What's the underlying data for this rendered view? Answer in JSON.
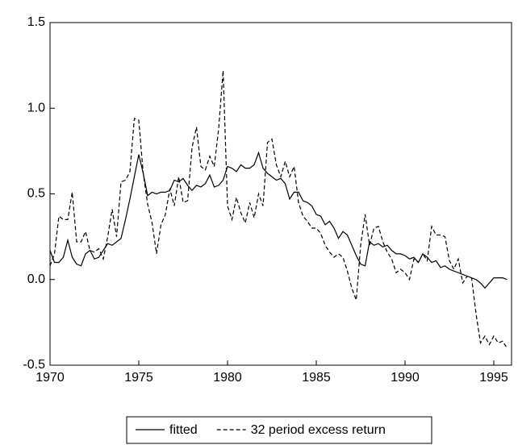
{
  "chart_data": {
    "type": "line",
    "x": [
      1970,
      1970.25,
      1970.5,
      1970.75,
      1971,
      1971.25,
      1971.5,
      1971.75,
      1972,
      1972.25,
      1972.5,
      1972.75,
      1973,
      1973.25,
      1973.5,
      1973.75,
      1974,
      1974.25,
      1974.5,
      1974.75,
      1975,
      1975.25,
      1975.5,
      1975.75,
      1976,
      1976.25,
      1976.5,
      1976.75,
      1977,
      1977.25,
      1977.5,
      1977.75,
      1978,
      1978.25,
      1978.5,
      1978.75,
      1979,
      1979.25,
      1979.5,
      1979.75,
      1980,
      1980.25,
      1980.5,
      1980.75,
      1981,
      1981.25,
      1981.5,
      1981.75,
      1982,
      1982.25,
      1982.5,
      1982.75,
      1983,
      1983.25,
      1983.5,
      1983.75,
      1984,
      1984.25,
      1984.5,
      1984.75,
      1985,
      1985.25,
      1985.5,
      1985.75,
      1986,
      1986.25,
      1986.5,
      1986.75,
      1987,
      1987.25,
      1987.5,
      1987.75,
      1988,
      1988.25,
      1988.5,
      1988.75,
      1989,
      1989.25,
      1989.5,
      1989.75,
      1990,
      1990.25,
      1990.5,
      1990.75,
      1991,
      1991.25,
      1991.5,
      1991.75,
      1992,
      1992.25,
      1992.5,
      1992.75,
      1993,
      1993.25,
      1993.5,
      1993.75,
      1994,
      1994.25,
      1994.5,
      1994.75,
      1995,
      1995.25,
      1995.5,
      1995.75
    ],
    "series": [
      {
        "name": "fitted",
        "color": "#000000",
        "dash": "solid",
        "values": [
          0.17,
          0.1,
          0.1,
          0.13,
          0.23,
          0.13,
          0.09,
          0.08,
          0.15,
          0.17,
          0.12,
          0.13,
          0.17,
          0.21,
          0.2,
          0.22,
          0.24,
          0.35,
          0.47,
          0.6,
          0.73,
          0.62,
          0.49,
          0.51,
          0.5,
          0.51,
          0.51,
          0.52,
          0.58,
          0.57,
          0.59,
          0.55,
          0.52,
          0.55,
          0.54,
          0.56,
          0.61,
          0.54,
          0.55,
          0.58,
          0.66,
          0.65,
          0.63,
          0.67,
          0.65,
          0.65,
          0.67,
          0.74,
          0.65,
          0.62,
          0.6,
          0.58,
          0.59,
          0.56,
          0.47,
          0.51,
          0.51,
          0.46,
          0.45,
          0.43,
          0.38,
          0.37,
          0.32,
          0.34,
          0.3,
          0.24,
          0.28,
          0.26,
          0.2,
          0.14,
          0.09,
          0.08,
          0.22,
          0.2,
          0.21,
          0.19,
          0.2,
          0.17,
          0.15,
          0.15,
          0.14,
          0.12,
          0.13,
          0.1,
          0.15,
          0.13,
          0.1,
          0.11,
          0.07,
          0.08,
          0.06,
          0.05,
          0.04,
          0.03,
          0.02,
          0.01,
          0.0,
          -0.02,
          -0.05,
          -0.02,
          0.01,
          0.01,
          0.01,
          0.0
        ]
      },
      {
        "name": "32 period excess return",
        "color": "#000000",
        "dash": "dashed",
        "values": [
          0.08,
          0.15,
          0.37,
          0.35,
          0.35,
          0.51,
          0.22,
          0.22,
          0.28,
          0.17,
          0.16,
          0.18,
          0.12,
          0.25,
          0.41,
          0.25,
          0.57,
          0.58,
          0.63,
          0.94,
          0.93,
          0.62,
          0.44,
          0.33,
          0.15,
          0.32,
          0.38,
          0.53,
          0.43,
          0.6,
          0.45,
          0.46,
          0.77,
          0.89,
          0.66,
          0.64,
          0.72,
          0.66,
          0.88,
          1.22,
          0.43,
          0.35,
          0.48,
          0.39,
          0.33,
          0.45,
          0.36,
          0.5,
          0.43,
          0.8,
          0.82,
          0.67,
          0.6,
          0.69,
          0.6,
          0.66,
          0.45,
          0.37,
          0.34,
          0.3,
          0.3,
          0.27,
          0.2,
          0.16,
          0.13,
          0.15,
          0.13,
          0.05,
          -0.05,
          -0.12,
          0.2,
          0.38,
          0.2,
          0.3,
          0.31,
          0.22,
          0.16,
          0.12,
          0.04,
          0.06,
          0.04,
          0.0,
          0.12,
          0.1,
          0.15,
          0.11,
          0.31,
          0.26,
          0.26,
          0.25,
          0.11,
          0.06,
          0.12,
          -0.02,
          0.02,
          0.01,
          -0.2,
          -0.37,
          -0.33,
          -0.38,
          -0.33,
          -0.37,
          -0.36,
          -0.4
        ]
      }
    ],
    "xlim": [
      1970,
      1996
    ],
    "xticks": [
      1970,
      1975,
      1980,
      1985,
      1990,
      1995
    ],
    "ylim": [
      -0.5,
      1.5
    ],
    "yticks": [
      {
        "value": -0.5,
        "label": "-0.5"
      },
      {
        "value": 0,
        "label": "0.0"
      },
      {
        "value": 0.5,
        "label": "0.5"
      },
      {
        "value": 1,
        "label": "1.0"
      },
      {
        "value": 1.5,
        "label": "1.5"
      }
    ],
    "grid": false,
    "legend": "bottom"
  }
}
